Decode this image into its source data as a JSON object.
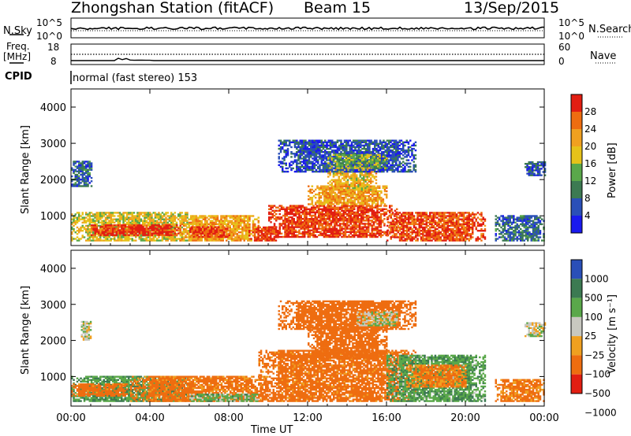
{
  "header": {
    "station": "Zhongshan Station (fitACF)",
    "beam": "Beam 15",
    "date": "13/Sep/2015"
  },
  "panels": {
    "noise": {
      "left_label": "N.Sky",
      "right_label": "N.Search",
      "left_ticks": [
        "10^5",
        "10^0"
      ],
      "right_ticks": [
        "10^5",
        "10^0"
      ]
    },
    "freq": {
      "left_label_1": "Freq.",
      "left_label_2": "[MHz]",
      "right_label": "Nave",
      "left_ticks": [
        "18",
        "8"
      ],
      "right_ticks": [
        "60",
        "0"
      ]
    },
    "cpid": {
      "label": "CPID",
      "text": "normal (fast stereo) 153"
    }
  },
  "axes": {
    "ylabel": "Slant Range [km]",
    "xlabel": "Time UT",
    "x_ticks": [
      "00:00",
      "04:00",
      "08:00",
      "12:00",
      "16:00",
      "20:00",
      "00:00"
    ],
    "y_ticks": [
      "1000",
      "2000",
      "3000",
      "4000"
    ]
  },
  "colorbars": {
    "power": {
      "label": "Power [dB]",
      "ticks": [
        "4",
        "8",
        "12",
        "16",
        "20",
        "24",
        "28"
      ],
      "colors": [
        "#1a1aee",
        "#2a4fb8",
        "#3c7a52",
        "#5aa84a",
        "#e6c21a",
        "#f0a020",
        "#ee6d10",
        "#e21e12"
      ]
    },
    "velocity": {
      "label": "Velocity [m s⁻¹]",
      "ticks": [
        "1000",
        "500",
        "100",
        "25",
        "−25",
        "−100",
        "−500",
        "−1000"
      ],
      "colors": [
        "#2a4fb8",
        "#3c7a52",
        "#5aa84a",
        "#c8c8c0",
        "#f0a020",
        "#ee6d10",
        "#e21e12"
      ]
    }
  },
  "chart_data": [
    {
      "type": "heatmap",
      "name_on_chart": "Power [dB]",
      "xlabel": "Time UT",
      "ylabel": "Slant Range [km]",
      "xlim_hours": [
        0,
        24
      ],
      "ylim_km": [
        180,
        4500
      ],
      "clim_db": [
        0,
        32
      ],
      "blobs": [
        {
          "t0": 0.0,
          "t1": 6.0,
          "r0": 300,
          "r1": 1100,
          "v": 18
        },
        {
          "t0": 1.0,
          "t1": 5.5,
          "r0": 450,
          "r1": 750,
          "v": 30
        },
        {
          "t0": 5.5,
          "t1": 9.5,
          "r0": 300,
          "r1": 1000,
          "v": 22
        },
        {
          "t0": 6.0,
          "t1": 8.0,
          "r0": 400,
          "r1": 700,
          "v": 29
        },
        {
          "t0": 9.0,
          "t1": 10.5,
          "r0": 300,
          "r1": 700,
          "v": 29
        },
        {
          "t0": 10.0,
          "t1": 16.5,
          "r0": 400,
          "r1": 1300,
          "v": 29
        },
        {
          "t0": 12.0,
          "t1": 16.0,
          "r0": 1300,
          "r1": 1800,
          "v": 22
        },
        {
          "t0": 13.0,
          "t1": 15.5,
          "r0": 1700,
          "r1": 2300,
          "v": 20
        },
        {
          "t0": 16.0,
          "t1": 21.0,
          "r0": 300,
          "r1": 1100,
          "v": 28
        },
        {
          "t0": 10.5,
          "t1": 17.5,
          "r0": 2200,
          "r1": 3100,
          "v": 6
        },
        {
          "t0": 13.0,
          "t1": 16.0,
          "r0": 2300,
          "r1": 2700,
          "v": 14
        },
        {
          "t0": 0.0,
          "t1": 1.0,
          "r0": 1800,
          "r1": 2500,
          "v": 8
        },
        {
          "t0": 21.5,
          "t1": 24.0,
          "r0": 300,
          "r1": 1000,
          "v": 8
        },
        {
          "t0": 23.0,
          "t1": 24.0,
          "r0": 2100,
          "r1": 2500,
          "v": 7
        }
      ]
    },
    {
      "type": "heatmap",
      "name_on_chart": "Velocity [m s⁻¹]",
      "xlabel": "Time UT",
      "ylabel": "Slant Range [km]",
      "xlim_hours": [
        0,
        24
      ],
      "ylim_km": [
        180,
        4500
      ],
      "blobs": [
        {
          "t0": 0.0,
          "t1": 6.0,
          "r0": 300,
          "r1": 1000,
          "v": 90
        },
        {
          "t0": 0.0,
          "t1": 3.0,
          "r0": 450,
          "r1": 800,
          "v": -150
        },
        {
          "t0": 3.0,
          "t1": 10.0,
          "r0": 300,
          "r1": 1000,
          "v": -140
        },
        {
          "t0": 6.0,
          "t1": 9.5,
          "r0": 300,
          "r1": 500,
          "v": 60
        },
        {
          "t0": 9.5,
          "t1": 17.5,
          "r0": 300,
          "r1": 1700,
          "v": -150
        },
        {
          "t0": 12.0,
          "t1": 16.0,
          "r0": 1500,
          "r1": 2400,
          "v": -160
        },
        {
          "t0": 16.0,
          "t1": 21.0,
          "r0": 300,
          "r1": 1600,
          "v": 80
        },
        {
          "t0": 17.0,
          "t1": 20.0,
          "r0": 700,
          "r1": 1300,
          "v": -120
        },
        {
          "t0": 10.5,
          "t1": 17.5,
          "r0": 2300,
          "r1": 3100,
          "v": -200
        },
        {
          "t0": 14.5,
          "t1": 16.5,
          "r0": 2400,
          "r1": 2800,
          "v": 0
        },
        {
          "t0": 23.0,
          "t1": 24.0,
          "r0": 2100,
          "r1": 2500,
          "v": 0
        },
        {
          "t0": 0.5,
          "t1": 1.0,
          "r0": 2000,
          "r1": 2500,
          "v": 0
        },
        {
          "t0": 21.5,
          "t1": 24.0,
          "r0": 300,
          "r1": 900,
          "v": -130
        }
      ]
    }
  ]
}
